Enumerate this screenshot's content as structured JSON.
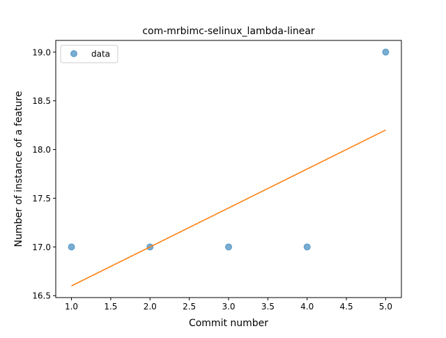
{
  "chart_data": {
    "type": "scatter",
    "title": "com-mrbimc-selinux_lambda-linear",
    "xlabel": "Commit number",
    "ylabel": "Number of instance of a feature",
    "xlim": [
      0.8,
      5.2
    ],
    "ylim": [
      16.48,
      19.12
    ],
    "xticks": [
      1.0,
      1.5,
      2.0,
      2.5,
      3.0,
      3.5,
      4.0,
      4.5,
      5.0
    ],
    "xtick_labels": [
      "1.0",
      "1.5",
      "2.0",
      "2.5",
      "3.0",
      "3.5",
      "4.0",
      "4.5",
      "5.0"
    ],
    "yticks": [
      16.5,
      17.0,
      17.5,
      18.0,
      18.5,
      19.0
    ],
    "ytick_labels": [
      "16.5",
      "17.0",
      "17.5",
      "18.0",
      "18.5",
      "19.0"
    ],
    "grid": false,
    "legend": {
      "position": "upper-left",
      "entries": [
        "data"
      ]
    },
    "series": [
      {
        "name": "data",
        "kind": "scatter",
        "color": "#1f77b4",
        "x": [
          1,
          2,
          3,
          4,
          5
        ],
        "y": [
          17,
          17,
          17,
          17,
          19
        ]
      },
      {
        "kind": "line",
        "color": "#ff7f0e",
        "x": [
          1,
          5
        ],
        "y": [
          16.6,
          18.2
        ]
      }
    ]
  }
}
